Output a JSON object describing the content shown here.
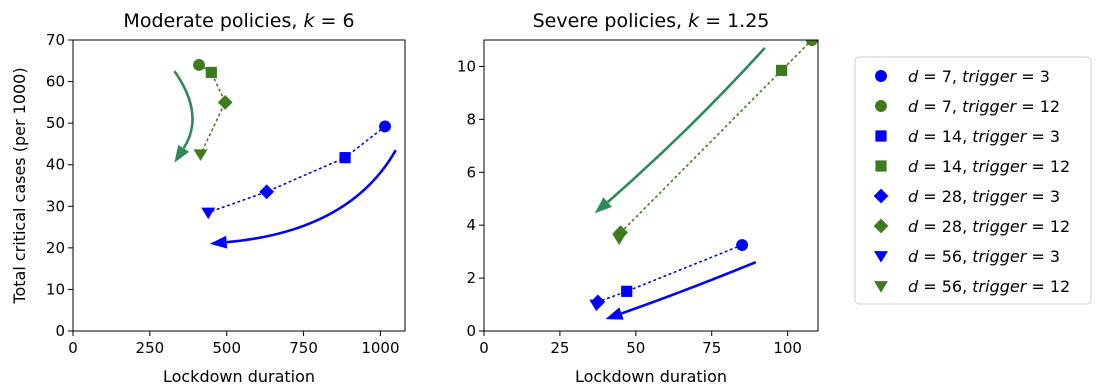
{
  "colors": {
    "blue": "#0000ff",
    "green": "#3f7a1f",
    "arrow_green": "#2e8b57",
    "axis": "#000000",
    "legend_border": "#cccccc"
  },
  "chart_data": [
    {
      "type": "scatter",
      "title": "Moderate policies, k = 6",
      "title_parts": {
        "prefix": "Moderate policies, ",
        "var": "k",
        "rest": " = 6"
      },
      "xlabel": "Lockdown duration",
      "ylabel": "Total critical cases (per 1000)",
      "xlim": [
        0,
        1080
      ],
      "ylim": [
        0,
        70
      ],
      "xticks": [
        0,
        250,
        500,
        750,
        1000
      ],
      "yticks": [
        0,
        10,
        20,
        30,
        40,
        50,
        60,
        70
      ],
      "series": [
        {
          "color": "blue",
          "points": [
            {
              "d": 7,
              "x": 1015,
              "y": 49.2,
              "marker": "circle"
            },
            {
              "d": 14,
              "x": 885,
              "y": 41.7,
              "marker": "square"
            },
            {
              "d": 28,
              "x": 630,
              "y": 33.5,
              "marker": "diamond"
            },
            {
              "d": 56,
              "x": 440,
              "y": 28.5,
              "marker": "triangle-down"
            }
          ]
        },
        {
          "color": "green",
          "points": [
            {
              "d": 7,
              "x": 410,
              "y": 64.0,
              "marker": "circle"
            },
            {
              "d": 14,
              "x": 450,
              "y": 62.2,
              "marker": "square"
            },
            {
              "d": 28,
              "x": 495,
              "y": 55.0,
              "marker": "diamond"
            },
            {
              "d": 56,
              "x": 415,
              "y": 42.5,
              "marker": "triangle-down"
            }
          ]
        }
      ],
      "arrows": [
        {
          "color": "arrow_green",
          "from": [
            330,
            62.5
          ],
          "ctrl": [
            430,
            52
          ],
          "to": [
            330,
            40.5
          ]
        },
        {
          "color": "blue",
          "from": [
            1050,
            43.5
          ],
          "ctrl": [
            900,
            24
          ],
          "to": [
            445,
            21
          ]
        }
      ]
    },
    {
      "type": "scatter",
      "title": "Severe policies, k = 1.25",
      "title_parts": {
        "prefix": "Severe policies, ",
        "var": "k",
        "rest": " = 1.25"
      },
      "xlabel": "Lockdown duration",
      "xlim": [
        0,
        110
      ],
      "ylim": [
        0,
        11
      ],
      "xticks": [
        0,
        25,
        50,
        75,
        100
      ],
      "yticks": [
        0,
        2,
        4,
        6,
        8,
        10
      ],
      "series": [
        {
          "color": "blue",
          "points": [
            {
              "d": 7,
              "x": 85.0,
              "y": 3.25,
              "marker": "circle"
            },
            {
              "d": 14,
              "x": 47.0,
              "y": 1.5,
              "marker": "square"
            },
            {
              "d": 28,
              "x": 37.5,
              "y": 1.1,
              "marker": "diamond"
            },
            {
              "d": 56,
              "x": 37.0,
              "y": 1.0,
              "marker": "triangle-down"
            }
          ]
        },
        {
          "color": "green",
          "points": [
            {
              "d": 7,
              "x": 108.0,
              "y": 11.0,
              "marker": "circle"
            },
            {
              "d": 14,
              "x": 98.0,
              "y": 9.85,
              "marker": "square"
            },
            {
              "d": 28,
              "x": 45.0,
              "y": 3.72,
              "marker": "diamond"
            },
            {
              "d": 56,
              "x": 44.5,
              "y": 3.5,
              "marker": "triangle-down"
            }
          ]
        }
      ],
      "arrows": [
        {
          "color": "arrow_green",
          "from": [
            92.5,
            10.7
          ],
          "ctrl": [
            67.5,
            7.55
          ],
          "to": [
            36.5,
            4.45
          ]
        },
        {
          "color": "blue",
          "from": [
            89.5,
            2.6
          ],
          "ctrl": [
            66,
            1.5
          ],
          "to": [
            40,
            0.45
          ]
        }
      ]
    }
  ],
  "legend": {
    "placement": "right, outside",
    "entries": [
      {
        "d": "7",
        "trigger": "3",
        "marker": "circle",
        "color": "blue"
      },
      {
        "d": "7",
        "trigger": "12",
        "marker": "circle",
        "color": "green"
      },
      {
        "d": "14",
        "trigger": "3",
        "marker": "square",
        "color": "blue"
      },
      {
        "d": "14",
        "trigger": "12",
        "marker": "square",
        "color": "green"
      },
      {
        "d": "28",
        "trigger": "3",
        "marker": "diamond",
        "color": "blue"
      },
      {
        "d": "28",
        "trigger": "12",
        "marker": "diamond",
        "color": "green"
      },
      {
        "d": "56",
        "trigger": "3",
        "marker": "triangle-down",
        "color": "blue"
      },
      {
        "d": "56",
        "trigger": "12",
        "marker": "triangle-down",
        "color": "green"
      }
    ]
  }
}
